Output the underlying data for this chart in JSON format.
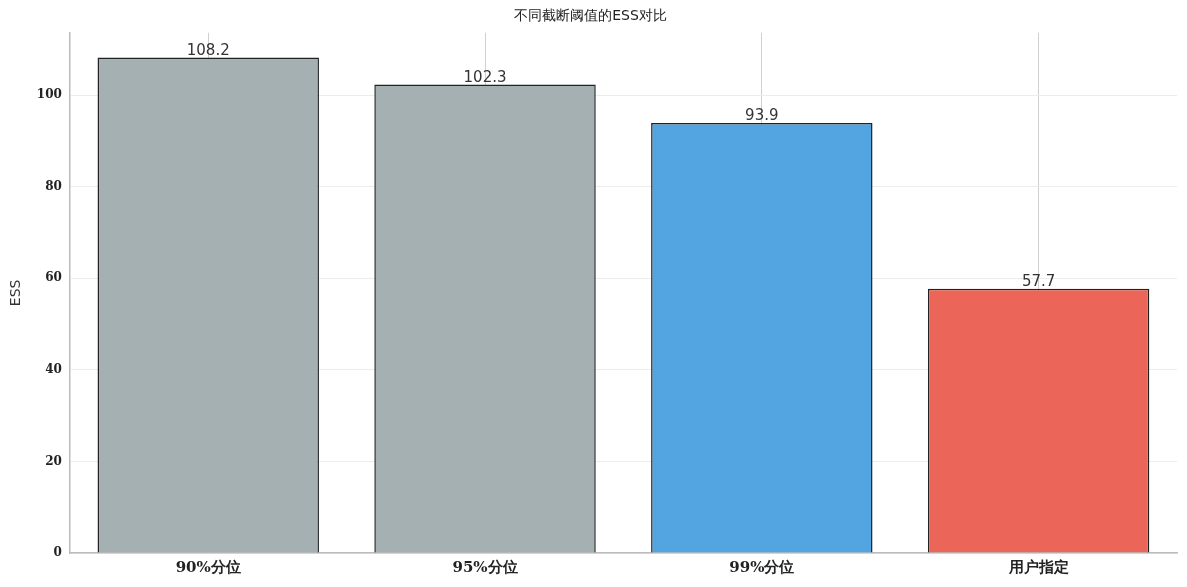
{
  "chart_data": {
    "type": "bar",
    "title": "不同截断阈值的ESS对比",
    "ylabel": "ESS",
    "categories": [
      "90%分位",
      "95%分位",
      "99%分位",
      "用户指定"
    ],
    "values": [
      108.2,
      102.3,
      93.9,
      57.7
    ],
    "colors": [
      "#a4b0b1",
      "#a4b0b1",
      "#52a5e0",
      "#eb6659"
    ],
    "ylim": [
      0,
      113.6
    ],
    "yticks": [
      0,
      20,
      40,
      60,
      80,
      100
    ],
    "grid": true,
    "data_labels": true,
    "legend": false
  }
}
